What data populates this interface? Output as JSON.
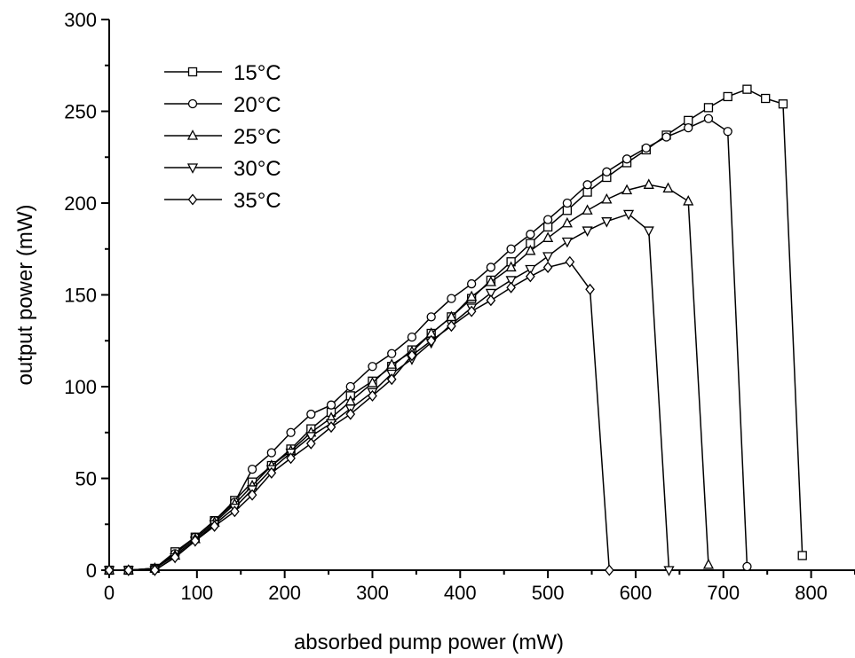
{
  "chart_data": {
    "type": "line",
    "title": "",
    "xlabel": "absorbed pump power (mW)",
    "ylabel": "output power (mW)",
    "xlim": [
      0,
      850
    ],
    "ylim": [
      0,
      300
    ],
    "xticks": [
      0,
      100,
      200,
      300,
      400,
      500,
      600,
      700,
      800
    ],
    "yticks": [
      0,
      50,
      100,
      150,
      200,
      250,
      300
    ],
    "grid": false,
    "legend_position": "top-left",
    "series": [
      {
        "name": "15°C",
        "marker": "square",
        "points": [
          [
            0,
            0
          ],
          [
            22,
            0
          ],
          [
            52,
            1
          ],
          [
            75,
            10
          ],
          [
            98,
            18
          ],
          [
            120,
            27
          ],
          [
            143,
            38
          ],
          [
            163,
            48
          ],
          [
            185,
            57
          ],
          [
            207,
            66
          ],
          [
            230,
            77
          ],
          [
            253,
            86
          ],
          [
            275,
            95
          ],
          [
            300,
            103
          ],
          [
            322,
            111
          ],
          [
            345,
            120
          ],
          [
            367,
            129
          ],
          [
            390,
            138
          ],
          [
            413,
            148
          ],
          [
            435,
            158
          ],
          [
            458,
            168
          ],
          [
            480,
            178
          ],
          [
            500,
            187
          ],
          [
            522,
            196
          ],
          [
            545,
            206
          ],
          [
            567,
            214
          ],
          [
            590,
            222
          ],
          [
            612,
            229
          ],
          [
            635,
            237
          ],
          [
            660,
            245
          ],
          [
            683,
            252
          ],
          [
            705,
            258
          ],
          [
            727,
            262
          ],
          [
            748,
            257
          ],
          [
            768,
            254
          ],
          [
            790,
            8
          ]
        ]
      },
      {
        "name": "20°C",
        "marker": "circle",
        "points": [
          [
            0,
            0
          ],
          [
            22,
            0
          ],
          [
            52,
            1
          ],
          [
            75,
            9
          ],
          [
            98,
            18
          ],
          [
            120,
            27
          ],
          [
            143,
            37
          ],
          [
            163,
            55
          ],
          [
            185,
            64
          ],
          [
            207,
            75
          ],
          [
            230,
            85
          ],
          [
            253,
            90
          ],
          [
            275,
            100
          ],
          [
            300,
            111
          ],
          [
            322,
            118
          ],
          [
            345,
            127
          ],
          [
            367,
            138
          ],
          [
            390,
            148
          ],
          [
            413,
            156
          ],
          [
            435,
            165
          ],
          [
            458,
            175
          ],
          [
            480,
            183
          ],
          [
            500,
            191
          ],
          [
            522,
            200
          ],
          [
            545,
            210
          ],
          [
            567,
            217
          ],
          [
            590,
            224
          ],
          [
            612,
            230
          ],
          [
            635,
            236
          ],
          [
            660,
            241
          ],
          [
            683,
            246
          ],
          [
            705,
            239
          ],
          [
            727,
            2
          ]
        ]
      },
      {
        "name": "25°C",
        "marker": "triangle-up",
        "points": [
          [
            0,
            0
          ],
          [
            22,
            0
          ],
          [
            52,
            1
          ],
          [
            75,
            8
          ],
          [
            98,
            17
          ],
          [
            120,
            26
          ],
          [
            143,
            36
          ],
          [
            163,
            46
          ],
          [
            185,
            57
          ],
          [
            207,
            65
          ],
          [
            230,
            75
          ],
          [
            253,
            83
          ],
          [
            275,
            92
          ],
          [
            300,
            102
          ],
          [
            322,
            112
          ],
          [
            345,
            119
          ],
          [
            367,
            129
          ],
          [
            390,
            138
          ],
          [
            413,
            149
          ],
          [
            435,
            157
          ],
          [
            458,
            165
          ],
          [
            480,
            174
          ],
          [
            500,
            181
          ],
          [
            522,
            189
          ],
          [
            545,
            196
          ],
          [
            567,
            202
          ],
          [
            590,
            207
          ],
          [
            615,
            210
          ],
          [
            637,
            208
          ],
          [
            660,
            201
          ],
          [
            683,
            3
          ]
        ]
      },
      {
        "name": "30°C",
        "marker": "triangle-down",
        "points": [
          [
            0,
            0
          ],
          [
            22,
            0
          ],
          [
            52,
            0
          ],
          [
            75,
            7
          ],
          [
            98,
            16
          ],
          [
            120,
            25
          ],
          [
            143,
            34
          ],
          [
            163,
            44
          ],
          [
            185,
            55
          ],
          [
            207,
            64
          ],
          [
            230,
            73
          ],
          [
            253,
            80
          ],
          [
            275,
            88
          ],
          [
            300,
            97
          ],
          [
            322,
            107
          ],
          [
            345,
            115
          ],
          [
            367,
            124
          ],
          [
            390,
            134
          ],
          [
            413,
            143
          ],
          [
            435,
            151
          ],
          [
            458,
            158
          ],
          [
            480,
            164
          ],
          [
            500,
            171
          ],
          [
            522,
            179
          ],
          [
            545,
            185
          ],
          [
            567,
            190
          ],
          [
            592,
            194
          ],
          [
            615,
            185
          ],
          [
            638,
            0
          ]
        ]
      },
      {
        "name": "35°C",
        "marker": "diamond",
        "points": [
          [
            0,
            0
          ],
          [
            22,
            0
          ],
          [
            52,
            0
          ],
          [
            75,
            7
          ],
          [
            98,
            16
          ],
          [
            120,
            24
          ],
          [
            143,
            32
          ],
          [
            163,
            41
          ],
          [
            185,
            53
          ],
          [
            207,
            61
          ],
          [
            230,
            69
          ],
          [
            253,
            78
          ],
          [
            275,
            85
          ],
          [
            300,
            95
          ],
          [
            322,
            104
          ],
          [
            345,
            117
          ],
          [
            367,
            125
          ],
          [
            390,
            133
          ],
          [
            413,
            141
          ],
          [
            435,
            147
          ],
          [
            458,
            154
          ],
          [
            480,
            160
          ],
          [
            500,
            165
          ],
          [
            525,
            168
          ],
          [
            548,
            153
          ],
          [
            570,
            0
          ]
        ]
      }
    ]
  }
}
